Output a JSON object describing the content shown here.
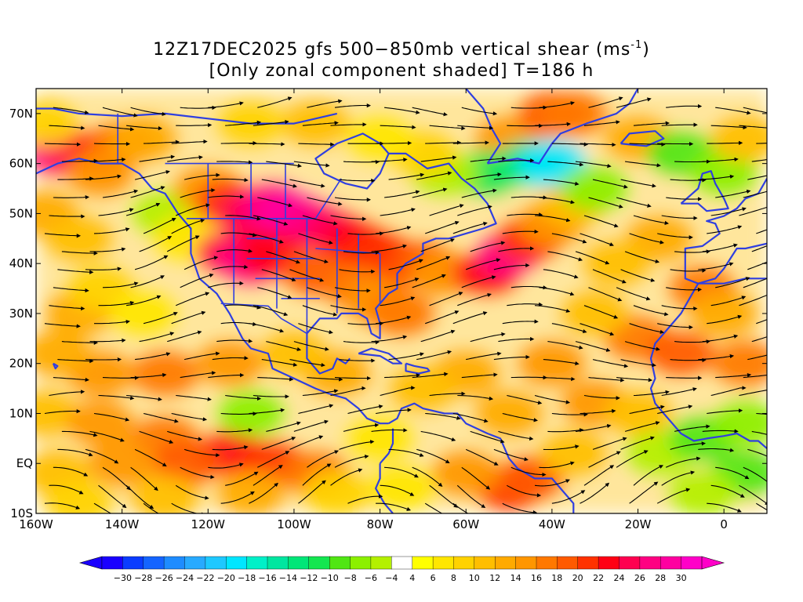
{
  "title": {
    "line1_main": "12Z17DEC2025 gfs 500−850mb vertical shear (ms",
    "line1_sup": "-1",
    "line1_end": ")",
    "line2": "[Only zonal component shaded] T=186 h"
  },
  "map": {
    "lon_range": [
      -160,
      10
    ],
    "lat_range": [
      -10,
      75
    ],
    "lat_ticks": [
      {
        "value": 70,
        "label": "70N"
      },
      {
        "value": 60,
        "label": "60N"
      },
      {
        "value": 50,
        "label": "50N"
      },
      {
        "value": 40,
        "label": "40N"
      },
      {
        "value": 30,
        "label": "30N"
      },
      {
        "value": 20,
        "label": "20N"
      },
      {
        "value": 10,
        "label": "10N"
      },
      {
        "value": 0,
        "label": "EQ"
      },
      {
        "value": -10,
        "label": "10S"
      }
    ],
    "lon_ticks": [
      {
        "value": -160,
        "label": "160W"
      },
      {
        "value": -140,
        "label": "140W"
      },
      {
        "value": -120,
        "label": "120W"
      },
      {
        "value": -100,
        "label": "100W"
      },
      {
        "value": -80,
        "label": "80W"
      },
      {
        "value": -60,
        "label": "60W"
      },
      {
        "value": -40,
        "label": "40W"
      },
      {
        "value": -20,
        "label": "20W"
      },
      {
        "value": 0,
        "label": "0"
      }
    ],
    "colors": {
      "coastline": "#2f3fe0",
      "streamline": "#000000",
      "near_zero": "#ffffff"
    },
    "legend_marks": [
      -30,
      -28,
      -26,
      -24,
      -22,
      -20,
      -18,
      -16,
      -14,
      -12,
      -10,
      -8,
      -6,
      -4,
      4,
      6,
      8,
      10,
      12,
      14,
      16,
      18,
      20,
      22,
      24,
      26,
      28,
      30
    ],
    "legend_colors": [
      "#1a00ff",
      "#0a3cff",
      "#1464ff",
      "#1e8cff",
      "#28aaff",
      "#1ec8ff",
      "#00e6ff",
      "#00f0c8",
      "#00e6a0",
      "#00e678",
      "#14e650",
      "#50e614",
      "#8cf000",
      "#b4f000",
      "#ffffff",
      "#ffff00",
      "#ffe600",
      "#ffd200",
      "#ffbe00",
      "#ffaa00",
      "#ff9600",
      "#ff7800",
      "#ff5a00",
      "#ff3200",
      "#ff0014",
      "#ff0050",
      "#ff0082",
      "#ff00a0",
      "#ff00c8"
    ],
    "shading_cells": [
      {
        "lon": -155,
        "lat": 62,
        "v": 26
      },
      {
        "lon": -150,
        "lat": 62,
        "v": 24
      },
      {
        "lon": -145,
        "lat": 62,
        "v": 22
      },
      {
        "lon": -140,
        "lat": 64,
        "v": 16
      },
      {
        "lon": -135,
        "lat": 65,
        "v": 12
      },
      {
        "lon": -158,
        "lat": 68,
        "v": 8
      },
      {
        "lon": -145,
        "lat": 58,
        "v": 14
      },
      {
        "lon": -158,
        "lat": 50,
        "v": 12
      },
      {
        "lon": -150,
        "lat": 45,
        "v": 10
      },
      {
        "lon": -150,
        "lat": 30,
        "v": 12
      },
      {
        "lon": -145,
        "lat": 35,
        "v": 8
      },
      {
        "lon": -135,
        "lat": 30,
        "v": 6
      },
      {
        "lon": -130,
        "lat": 50,
        "v": -6
      },
      {
        "lon": -125,
        "lat": 45,
        "v": 6
      },
      {
        "lon": -120,
        "lat": 55,
        "v": 14
      },
      {
        "lon": -115,
        "lat": 52,
        "v": 20
      },
      {
        "lon": -110,
        "lat": 50,
        "v": 24
      },
      {
        "lon": -105,
        "lat": 52,
        "v": 26
      },
      {
        "lon": -100,
        "lat": 50,
        "v": 28
      },
      {
        "lon": -95,
        "lat": 48,
        "v": 26
      },
      {
        "lon": -90,
        "lat": 46,
        "v": 24
      },
      {
        "lon": -85,
        "lat": 44,
        "v": 22
      },
      {
        "lon": -80,
        "lat": 42,
        "v": 20
      },
      {
        "lon": -75,
        "lat": 40,
        "v": 20
      },
      {
        "lon": -70,
        "lat": 40,
        "v": 18
      },
      {
        "lon": -115,
        "lat": 42,
        "v": 24
      },
      {
        "lon": -110,
        "lat": 40,
        "v": 26
      },
      {
        "lon": -105,
        "lat": 42,
        "v": 22
      },
      {
        "lon": -95,
        "lat": 38,
        "v": 18
      },
      {
        "lon": -85,
        "lat": 35,
        "v": 16
      },
      {
        "lon": -80,
        "lat": 32,
        "v": 14
      },
      {
        "lon": -75,
        "lat": 30,
        "v": 16
      },
      {
        "lon": -65,
        "lat": 38,
        "v": 14
      },
      {
        "lon": -55,
        "lat": 38,
        "v": 22
      },
      {
        "lon": -50,
        "lat": 42,
        "v": 26
      },
      {
        "lon": -45,
        "lat": 45,
        "v": 20
      },
      {
        "lon": -40,
        "lat": 48,
        "v": 14
      },
      {
        "lon": -35,
        "lat": 52,
        "v": 10
      },
      {
        "lon": -50,
        "lat": 65,
        "v": 14
      },
      {
        "lon": -40,
        "lat": 70,
        "v": 18
      },
      {
        "lon": -35,
        "lat": 70,
        "v": 16
      },
      {
        "lon": -55,
        "lat": 58,
        "v": -12
      },
      {
        "lon": -45,
        "lat": 60,
        "v": -14
      },
      {
        "lon": -40,
        "lat": 60,
        "v": -20
      },
      {
        "lon": -30,
        "lat": 55,
        "v": -8
      },
      {
        "lon": -65,
        "lat": 58,
        "v": -6
      },
      {
        "lon": -70,
        "lat": 62,
        "v": 8
      },
      {
        "lon": -80,
        "lat": 65,
        "v": 6
      },
      {
        "lon": -95,
        "lat": 68,
        "v": 10
      },
      {
        "lon": -110,
        "lat": 68,
        "v": 8
      },
      {
        "lon": -20,
        "lat": 65,
        "v": 12
      },
      {
        "lon": -10,
        "lat": 62,
        "v": -10
      },
      {
        "lon": 0,
        "lat": 58,
        "v": -8
      },
      {
        "lon": 5,
        "lat": 65,
        "v": 10
      },
      {
        "lon": -15,
        "lat": 45,
        "v": 12
      },
      {
        "lon": -25,
        "lat": 40,
        "v": 10
      },
      {
        "lon": -5,
        "lat": 35,
        "v": 16
      },
      {
        "lon": 0,
        "lat": 30,
        "v": 12
      },
      {
        "lon": -20,
        "lat": 25,
        "v": 16
      },
      {
        "lon": -30,
        "lat": 30,
        "v": 10
      },
      {
        "lon": -10,
        "lat": 22,
        "v": 18
      },
      {
        "lon": 5,
        "lat": 20,
        "v": 16
      },
      {
        "lon": -40,
        "lat": 20,
        "v": 14
      },
      {
        "lon": -60,
        "lat": 18,
        "v": 12
      },
      {
        "lon": -70,
        "lat": 15,
        "v": 10
      },
      {
        "lon": -90,
        "lat": 18,
        "v": 12
      },
      {
        "lon": -100,
        "lat": 22,
        "v": 10
      },
      {
        "lon": -115,
        "lat": 20,
        "v": 14
      },
      {
        "lon": -130,
        "lat": 18,
        "v": 16
      },
      {
        "lon": -145,
        "lat": 18,
        "v": 14
      },
      {
        "lon": -155,
        "lat": 22,
        "v": 12
      },
      {
        "lon": -158,
        "lat": 10,
        "v": 10
      },
      {
        "lon": -145,
        "lat": 8,
        "v": 14
      },
      {
        "lon": -130,
        "lat": 5,
        "v": 16
      },
      {
        "lon": -115,
        "lat": 2,
        "v": 22
      },
      {
        "lon": -105,
        "lat": 0,
        "v": 20
      },
      {
        "lon": -95,
        "lat": -2,
        "v": 16
      },
      {
        "lon": -125,
        "lat": 0,
        "v": 18
      },
      {
        "lon": -140,
        "lat": 0,
        "v": 14
      },
      {
        "lon": -155,
        "lat": -2,
        "v": 10
      },
      {
        "lon": -150,
        "lat": -8,
        "v": 8
      },
      {
        "lon": -130,
        "lat": -7,
        "v": 10
      },
      {
        "lon": -110,
        "lat": -6,
        "v": 12
      },
      {
        "lon": -90,
        "lat": -6,
        "v": 8
      },
      {
        "lon": -50,
        "lat": -5,
        "v": 20
      },
      {
        "lon": -45,
        "lat": -3,
        "v": 18
      },
      {
        "lon": -60,
        "lat": -2,
        "v": 14
      },
      {
        "lon": -35,
        "lat": 2,
        "v": 10
      },
      {
        "lon": -50,
        "lat": 10,
        "v": 12
      },
      {
        "lon": -30,
        "lat": 12,
        "v": 14
      },
      {
        "lon": -20,
        "lat": 10,
        "v": 10
      },
      {
        "lon": -15,
        "lat": 2,
        "v": -6
      },
      {
        "lon": -5,
        "lat": 5,
        "v": -10
      },
      {
        "lon": 5,
        "lat": 8,
        "v": -8
      },
      {
        "lon": 5,
        "lat": -2,
        "v": -10
      },
      {
        "lon": -5,
        "lat": -6,
        "v": -6
      },
      {
        "lon": -110,
        "lat": 10,
        "v": -8
      },
      {
        "lon": -80,
        "lat": 5,
        "v": 6
      },
      {
        "lon": -75,
        "lat": -5,
        "v": 6
      }
    ]
  }
}
